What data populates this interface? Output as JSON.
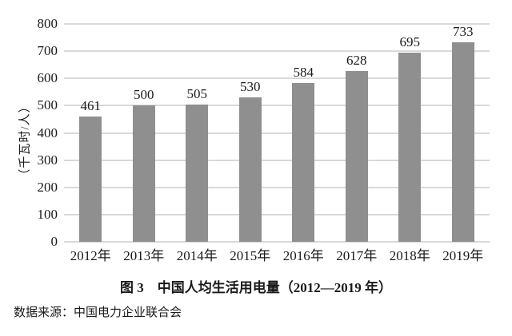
{
  "chart_data": {
    "type": "bar",
    "categories": [
      "2012年",
      "2013年",
      "2014年",
      "2015年",
      "2016年",
      "2017年",
      "2018年",
      "2019年"
    ],
    "values": [
      461,
      500,
      505,
      530,
      584,
      628,
      695,
      733
    ],
    "title": "图 3　中国人均生活用电量（2012—2019 年）",
    "xlabel": "",
    "ylabel": "（千瓦时/人）",
    "ylim": [
      0,
      800
    ],
    "ytick_labels": [
      "800",
      "700",
      "600",
      "500",
      "400",
      "300",
      "200",
      "100",
      "0"
    ],
    "grid": true,
    "legend": "none",
    "bar_color": "#8f8f8f",
    "gridline_color": "#d9d9d9",
    "text_color": "#1a1a1a"
  },
  "caption": "图 3　中国人均生活用电量（2012—2019 年）",
  "source_note": "数据来源：中国电力企业联合会"
}
